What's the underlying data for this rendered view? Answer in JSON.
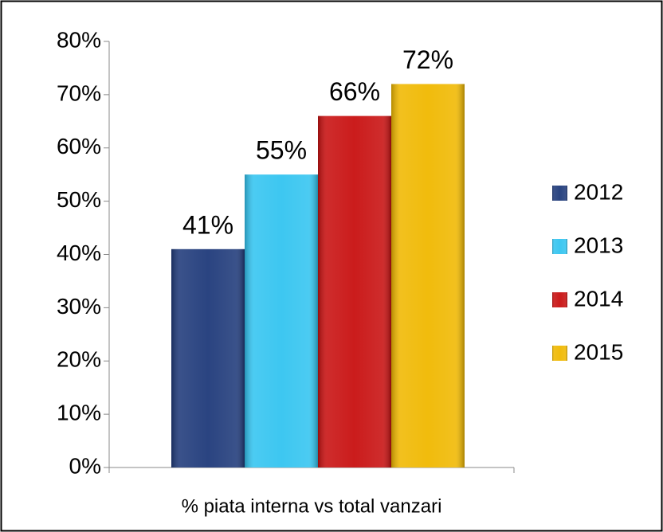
{
  "chart_data": {
    "type": "bar",
    "categories": [
      "% piata interna vs total vanzari"
    ],
    "series": [
      {
        "name": "2012",
        "color": "#1f3a7a",
        "values": [
          41
        ],
        "value_labels": [
          "41%"
        ]
      },
      {
        "name": "2013",
        "color": "#33c4f0",
        "values": [
          55
        ],
        "value_labels": [
          "55%"
        ]
      },
      {
        "name": "2014",
        "color": "#c81010",
        "values": [
          66
        ],
        "value_labels": [
          "66%"
        ]
      },
      {
        "name": "2015",
        "color": "#f0b800",
        "values": [
          72
        ],
        "value_labels": [
          "72%"
        ]
      }
    ],
    "ylim": [
      0,
      80
    ],
    "yticks": [
      {
        "value": 0,
        "label": "0%"
      },
      {
        "value": 10,
        "label": "10%"
      },
      {
        "value": 20,
        "label": "20%"
      },
      {
        "value": 30,
        "label": "30%"
      },
      {
        "value": 40,
        "label": "40%"
      },
      {
        "value": 50,
        "label": "50%"
      },
      {
        "value": 60,
        "label": "60%"
      },
      {
        "value": 70,
        "label": "70%"
      },
      {
        "value": 80,
        "label": "80%"
      }
    ],
    "grid": false,
    "legend": "right"
  }
}
